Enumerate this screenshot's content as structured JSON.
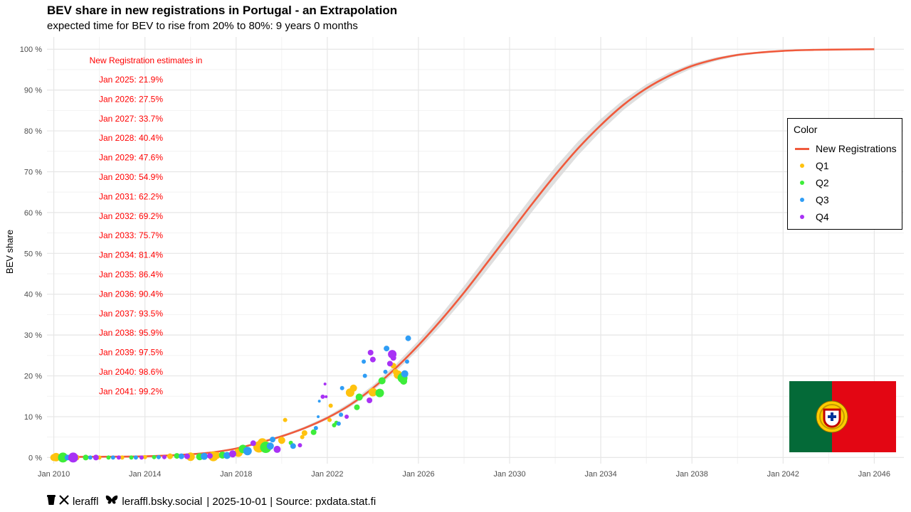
{
  "header": {
    "title": "BEV share in new registrations in Portugal - an Extrapolation",
    "subtitle": "expected time for BEV to rise from 20% to 80%: 9 years 0 months"
  },
  "annotations": {
    "heading": "New Registration estimates in",
    "items": [
      "Jan 2025: 21.9%",
      "Jan 2026: 27.5%",
      "Jan 2027: 33.7%",
      "Jan 2028: 40.4%",
      "Jan 2029: 47.6%",
      "Jan 2030: 54.9%",
      "Jan 2031: 62.2%",
      "Jan 2032: 69.2%",
      "Jan 2033: 75.7%",
      "Jan 2034: 81.4%",
      "Jan 2035: 86.4%",
      "Jan 2036: 90.4%",
      "Jan 2037: 93.5%",
      "Jan 2038: 95.9%",
      "Jan 2039: 97.5%",
      "Jan 2040: 98.6%",
      "Jan 2041: 99.2%"
    ]
  },
  "legend": {
    "title": "Color",
    "line_label": "New Registrations",
    "items": [
      "Q1",
      "Q2",
      "Q3",
      "Q4"
    ]
  },
  "footer": {
    "twitter_handle": "leraffl",
    "bluesky_handle": "leraffl.bsky.social",
    "meta": "| 2025-10-01 | Source: pxdata.stat.fi"
  },
  "colors": {
    "curve": "#f05a3c",
    "band": "#d9d9d9",
    "Q1": "#ffc20e",
    "Q2": "#3ded3a",
    "Q3": "#2f9df5",
    "Q4": "#a832f5",
    "annotation": "#ff0000",
    "flag_green": "#046a38",
    "flag_red": "#da291c"
  },
  "chart_data": {
    "type": "scatter",
    "ylabel": "BEV share",
    "xlabel": "",
    "xlim": [
      2009.7,
      2047.3
    ],
    "ylim": [
      -1.5,
      103
    ],
    "x_ticks": [
      {
        "x": 2010,
        "label": "Jan 2010"
      },
      {
        "x": 2014,
        "label": "Jan 2014"
      },
      {
        "x": 2018,
        "label": "Jan 2018"
      },
      {
        "x": 2022,
        "label": "Jan 2022"
      },
      {
        "x": 2026,
        "label": "Jan 2026"
      },
      {
        "x": 2030,
        "label": "Jan 2030"
      },
      {
        "x": 2034,
        "label": "Jan 2034"
      },
      {
        "x": 2038,
        "label": "Jan 2038"
      },
      {
        "x": 2042,
        "label": "Jan 2042"
      },
      {
        "x": 2046,
        "label": "Jan 2046"
      }
    ],
    "y_ticks": [
      {
        "y": 0,
        "label": "0 %"
      },
      {
        "y": 10,
        "label": "10 %"
      },
      {
        "y": 20,
        "label": "20 %"
      },
      {
        "y": 30,
        "label": "30 %"
      },
      {
        "y": 40,
        "label": "40 %"
      },
      {
        "y": 50,
        "label": "50 %"
      },
      {
        "y": 60,
        "label": "60 %"
      },
      {
        "y": 70,
        "label": "70 %"
      },
      {
        "y": 80,
        "label": "80 %"
      },
      {
        "y": 90,
        "label": "90 %"
      },
      {
        "y": 100,
        "label": "100 %"
      }
    ],
    "fit_curve": {
      "name": "New Registrations",
      "points": [
        [
          2010.0,
          0.1
        ],
        [
          2012.0,
          0.2
        ],
        [
          2014.0,
          0.3
        ],
        [
          2016.0,
          0.8
        ],
        [
          2017.0,
          1.3
        ],
        [
          2018.0,
          2.2
        ],
        [
          2019.0,
          3.6
        ],
        [
          2020.0,
          5.2
        ],
        [
          2021.0,
          7.2
        ],
        [
          2022.0,
          9.7
        ],
        [
          2023.0,
          12.9
        ],
        [
          2024.0,
          17.0
        ],
        [
          2025.0,
          21.9
        ],
        [
          2026.0,
          27.5
        ],
        [
          2027.0,
          33.7
        ],
        [
          2028.0,
          40.4
        ],
        [
          2029.0,
          47.6
        ],
        [
          2030.0,
          54.9
        ],
        [
          2031.0,
          62.2
        ],
        [
          2032.0,
          69.2
        ],
        [
          2033.0,
          75.7
        ],
        [
          2034.0,
          81.4
        ],
        [
          2035.0,
          86.4
        ],
        [
          2036.0,
          90.4
        ],
        [
          2037.0,
          93.5
        ],
        [
          2038.0,
          95.9
        ],
        [
          2039.0,
          97.5
        ],
        [
          2040.0,
          98.6
        ],
        [
          2041.0,
          99.2
        ],
        [
          2042.0,
          99.6
        ],
        [
          2043.0,
          99.8
        ],
        [
          2044.0,
          99.9
        ],
        [
          2046.0,
          100.0
        ]
      ],
      "band_halfwidth": [
        [
          2010.0,
          0.0
        ],
        [
          2018.0,
          0.2
        ],
        [
          2022.0,
          0.4
        ],
        [
          2024.0,
          0.7
        ],
        [
          2026.0,
          1.1
        ],
        [
          2028.0,
          1.6
        ],
        [
          2030.0,
          1.9
        ],
        [
          2032.0,
          1.9
        ],
        [
          2034.0,
          1.5
        ],
        [
          2036.0,
          1.0
        ],
        [
          2038.0,
          0.6
        ],
        [
          2040.0,
          0.3
        ],
        [
          2042.0,
          0.15
        ],
        [
          2046.0,
          0.05
        ]
      ]
    },
    "series": [
      {
        "name": "Q1",
        "points": [
          [
            2010.0,
            0.0,
            5
          ],
          [
            2010.1,
            0.1,
            6
          ],
          [
            2011.0,
            0.0,
            4
          ],
          [
            2012.0,
            0.0,
            3
          ],
          [
            2013.0,
            0.0,
            3
          ],
          [
            2014.0,
            0.1,
            3
          ],
          [
            2015.1,
            0.3,
            4
          ],
          [
            2016.0,
            0.2,
            6
          ],
          [
            2017.0,
            0.3,
            7
          ],
          [
            2017.15,
            0.5,
            5
          ],
          [
            2018.1,
            1.2,
            6
          ],
          [
            2019.0,
            2.6,
            8
          ],
          [
            2019.15,
            3.5,
            7
          ],
          [
            2020.0,
            4.2,
            5
          ],
          [
            2020.15,
            9.2,
            3
          ],
          [
            2020.9,
            5.0,
            3
          ],
          [
            2021.0,
            6.0,
            4
          ],
          [
            2022.1,
            9.2,
            3
          ],
          [
            2022.15,
            12.7,
            3
          ],
          [
            2023.0,
            15.9,
            6
          ],
          [
            2023.15,
            17.0,
            5
          ],
          [
            2024.0,
            16.0,
            6
          ],
          [
            2024.9,
            22.5,
            4
          ],
          [
            2025.0,
            21.0,
            4
          ],
          [
            2025.1,
            20.3,
            6
          ]
        ]
      },
      {
        "name": "Q2",
        "points": [
          [
            2010.4,
            0.0,
            7
          ],
          [
            2011.4,
            0.0,
            4
          ],
          [
            2012.4,
            0.0,
            3
          ],
          [
            2013.4,
            0.0,
            3
          ],
          [
            2014.4,
            0.1,
            3
          ],
          [
            2015.4,
            0.4,
            4
          ],
          [
            2016.4,
            0.2,
            5
          ],
          [
            2017.4,
            0.6,
            5
          ],
          [
            2018.3,
            2.1,
            6
          ],
          [
            2019.3,
            2.5,
            8
          ],
          [
            2020.4,
            3.6,
            3
          ],
          [
            2021.4,
            6.2,
            4
          ],
          [
            2022.3,
            7.9,
            3
          ],
          [
            2022.4,
            8.5,
            3
          ],
          [
            2023.3,
            12.3,
            4
          ],
          [
            2023.4,
            14.8,
            5
          ],
          [
            2024.3,
            15.8,
            6
          ],
          [
            2024.4,
            18.8,
            5
          ],
          [
            2025.3,
            19.5,
            7
          ],
          [
            2025.35,
            18.7,
            5
          ]
        ]
      },
      {
        "name": "Q3",
        "points": [
          [
            2010.6,
            0.0,
            4
          ],
          [
            2011.6,
            0.0,
            3
          ],
          [
            2012.6,
            0.0,
            3
          ],
          [
            2013.6,
            0.0,
            3
          ],
          [
            2014.6,
            0.1,
            3
          ],
          [
            2015.6,
            0.3,
            4
          ],
          [
            2016.6,
            0.3,
            5
          ],
          [
            2017.6,
            0.5,
            5
          ],
          [
            2018.5,
            1.6,
            6
          ],
          [
            2019.5,
            2.8,
            5
          ],
          [
            2019.6,
            4.4,
            4
          ],
          [
            2020.5,
            2.8,
            4
          ],
          [
            2021.5,
            7.2,
            3
          ],
          [
            2021.65,
            13.8,
            2
          ],
          [
            2021.6,
            10.0,
            2
          ],
          [
            2022.5,
            8.3,
            3
          ],
          [
            2022.6,
            10.5,
            3
          ],
          [
            2022.65,
            17.0,
            3
          ],
          [
            2023.6,
            23.5,
            3
          ],
          [
            2023.65,
            20.0,
            3
          ],
          [
            2024.55,
            21.0,
            3
          ],
          [
            2024.6,
            26.7,
            4
          ],
          [
            2025.4,
            20.5,
            5
          ],
          [
            2025.5,
            23.5,
            3
          ],
          [
            2025.55,
            29.2,
            4
          ]
        ]
      },
      {
        "name": "Q4",
        "points": [
          [
            2010.85,
            0.0,
            7
          ],
          [
            2011.85,
            0.0,
            4
          ],
          [
            2012.85,
            0.0,
            3
          ],
          [
            2013.85,
            0.0,
            3
          ],
          [
            2014.85,
            0.1,
            3
          ],
          [
            2015.85,
            0.3,
            4
          ],
          [
            2016.85,
            0.4,
            4
          ],
          [
            2017.85,
            0.9,
            5
          ],
          [
            2018.75,
            3.5,
            4
          ],
          [
            2019.8,
            2.0,
            5
          ],
          [
            2020.8,
            3.0,
            3
          ],
          [
            2021.8,
            14.9,
            3
          ],
          [
            2021.9,
            18.0,
            2
          ],
          [
            2021.95,
            14.9,
            2
          ],
          [
            2022.85,
            10.0,
            3
          ],
          [
            2023.85,
            14.0,
            4
          ],
          [
            2023.9,
            25.7,
            4
          ],
          [
            2024.0,
            24.0,
            4
          ],
          [
            2024.75,
            23.0,
            4
          ],
          [
            2024.85,
            25.3,
            6
          ],
          [
            2024.9,
            24.4,
            4
          ]
        ]
      }
    ]
  }
}
